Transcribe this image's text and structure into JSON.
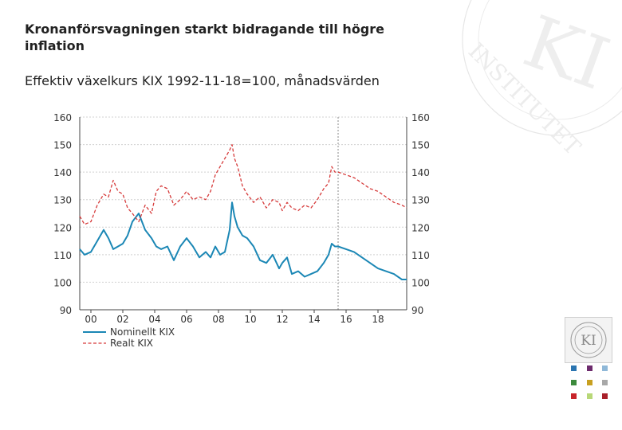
{
  "header": {
    "title": "Kronanförsvagningen starkt bidragande till högre inflation",
    "subtitle": "Effektiv växelkurs KIX 1992-11-18=100, månadsvärden"
  },
  "logo": {
    "text": "KI"
  },
  "watermark": {
    "text": "INSTITUTET"
  },
  "colors": {
    "nominal": "#1b87b5",
    "real": "#d63b3b",
    "grid": "#d0d0d0",
    "axis": "#444444",
    "forecast_line": "#8a8a8a"
  },
  "chart_data": {
    "type": "line",
    "title": "Kronanförsvagningen starkt bidragande till högre inflation",
    "ylabel": "Effektiv växelkurs KIX 1992-11-18=100, månadsvärden",
    "xlim": [
      1999.3,
      2019.8
    ],
    "ylim": [
      90,
      160
    ],
    "yticks": [
      90,
      100,
      110,
      120,
      130,
      140,
      150,
      160
    ],
    "ytick_labels_left": [
      "90",
      "100",
      "110",
      "120",
      "130",
      "140",
      "150",
      "160"
    ],
    "ytick_labels_right": [
      "90",
      "100",
      "110",
      "120",
      "130",
      "140",
      "150",
      "160"
    ],
    "xticks": [
      2000,
      2002,
      2004,
      2006,
      2008,
      2010,
      2012,
      2014,
      2016,
      2018
    ],
    "xtick_labels": [
      "00",
      "02",
      "04",
      "06",
      "08",
      "10",
      "12",
      "14",
      "16",
      "18"
    ],
    "forecast_start": 2015.5,
    "legend_position": "bottom-left",
    "series": [
      {
        "name": "Nominellt KIX",
        "style": "solid",
        "x": [
          1999.3,
          1999.6,
          2000.0,
          2000.4,
          2000.8,
          2001.1,
          2001.4,
          2001.7,
          2002.0,
          2002.3,
          2002.6,
          2003.0,
          2003.4,
          2003.8,
          2004.1,
          2004.4,
          2004.8,
          2005.2,
          2005.6,
          2006.0,
          2006.4,
          2006.8,
          2007.2,
          2007.5,
          2007.8,
          2008.1,
          2008.4,
          2008.7,
          2008.85,
          2009.0,
          2009.2,
          2009.5,
          2009.8,
          2010.2,
          2010.6,
          2011.0,
          2011.4,
          2011.8,
          2012.0,
          2012.3,
          2012.6,
          2013.0,
          2013.4,
          2013.8,
          2014.2,
          2014.6,
          2014.9,
          2015.1,
          2015.3,
          2015.5,
          2016.0,
          2016.5,
          2017.0,
          2017.5,
          2018.0,
          2018.5,
          2019.0,
          2019.5,
          2019.8
        ],
        "y": [
          112,
          110,
          111,
          115,
          119,
          116,
          112,
          113,
          114,
          117,
          122,
          125,
          119,
          116,
          113,
          112,
          113,
          108,
          113,
          116,
          113,
          109,
          111,
          109,
          113,
          110,
          111,
          119,
          129,
          124,
          120,
          117,
          116,
          113,
          108,
          107,
          110,
          105,
          107,
          109,
          103,
          104,
          102,
          103,
          104,
          107,
          110,
          114,
          113,
          113,
          112,
          111,
          109,
          107,
          105,
          104,
          103,
          101,
          101
        ]
      },
      {
        "name": "Realt KIX",
        "style": "dashed",
        "x": [
          1999.3,
          1999.6,
          2000.0,
          2000.4,
          2000.8,
          2001.1,
          2001.4,
          2001.7,
          2002.0,
          2002.3,
          2002.6,
          2003.0,
          2003.4,
          2003.8,
          2004.1,
          2004.4,
          2004.8,
          2005.2,
          2005.6,
          2006.0,
          2006.4,
          2006.8,
          2007.2,
          2007.5,
          2007.8,
          2008.1,
          2008.4,
          2008.7,
          2008.85,
          2009.0,
          2009.2,
          2009.5,
          2009.8,
          2010.2,
          2010.6,
          2011.0,
          2011.4,
          2011.8,
          2012.0,
          2012.3,
          2012.6,
          2013.0,
          2013.4,
          2013.8,
          2014.2,
          2014.6,
          2014.9,
          2015.1,
          2015.3,
          2015.5,
          2016.0,
          2016.5,
          2017.0,
          2017.5,
          2018.0,
          2018.5,
          2019.0,
          2019.5,
          2019.8
        ],
        "y": [
          124,
          121,
          122,
          128,
          132,
          131,
          137,
          133,
          132,
          127,
          125,
          122,
          128,
          125,
          133,
          135,
          134,
          128,
          130,
          133,
          130,
          131,
          130,
          133,
          139,
          142,
          145,
          148,
          150,
          145,
          142,
          135,
          132,
          129,
          131,
          127,
          130,
          129,
          126,
          129,
          127,
          126,
          128,
          127,
          130,
          134,
          136,
          142,
          140,
          140,
          139,
          138,
          136,
          134,
          133,
          131,
          129,
          128,
          127
        ]
      }
    ]
  }
}
